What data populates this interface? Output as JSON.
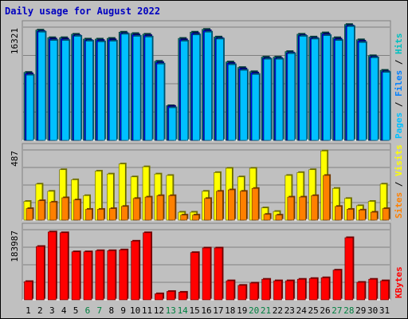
{
  "chart_data": {
    "type": "bar",
    "title": "Daily usage for August 2022",
    "categories": [
      "1",
      "2",
      "3",
      "4",
      "5",
      "6",
      "7",
      "8",
      "9",
      "10",
      "11",
      "12",
      "13",
      "14",
      "15",
      "16",
      "17",
      "18",
      "19",
      "20",
      "21",
      "22",
      "23",
      "24",
      "25",
      "26",
      "27",
      "28",
      "29",
      "30",
      "31"
    ],
    "weekend_days": [
      "6",
      "7",
      "13",
      "14",
      "20",
      "21",
      "27",
      "28"
    ],
    "panels": [
      {
        "id": "hits-panel",
        "max_label": "16321",
        "ymax": 16321,
        "legend": [
          "Pages",
          "Files",
          "Hits"
        ],
        "legend_colors": [
          "#00c0ff",
          "#0080ff",
          "#00c0c0"
        ],
        "series": [
          {
            "name": "Hits",
            "color": "#008080",
            "values": [
              9800,
              15900,
              14800,
              14800,
              15300,
              14600,
              14600,
              14700,
              15600,
              15400,
              15300,
              11400,
              5000,
              14700,
              15600,
              16000,
              14900,
              11300,
              10500,
              9900,
              12000,
              12000,
              12800,
              15300,
              14900,
              15500,
              14800,
              16700,
              14500,
              12200,
              10100
            ]
          },
          {
            "name": "Files",
            "color": "#0000ff",
            "values": [
              9600,
              15700,
              14600,
              14600,
              15100,
              14400,
              14400,
              14500,
              15400,
              15200,
              15100,
              11200,
              4900,
              14500,
              15400,
              15800,
              14700,
              11100,
              10300,
              9700,
              11800,
              11800,
              12600,
              15100,
              14700,
              15300,
              14600,
              16500,
              14300,
              12000,
              9900
            ]
          },
          {
            "name": "Pages",
            "color": "#00c0ff",
            "values": [
              9400,
              15600,
              14400,
              14400,
              15000,
              14300,
              14200,
              14300,
              15300,
              15000,
              14900,
              11000,
              4700,
              14300,
              15200,
              15600,
              14600,
              10900,
              10100,
              9500,
              11700,
              11700,
              12500,
              15000,
              14600,
              15100,
              14400,
              16400,
              14100,
              11900,
              9800
            ]
          }
        ]
      },
      {
        "id": "visits-panel",
        "max_label": "487",
        "ymax": 487,
        "legend": [
          "Sites",
          "Visits"
        ],
        "legend_colors": [
          "#ff8000",
          "#ffff00"
        ],
        "series": [
          {
            "name": "Visits",
            "color": "#ffff00",
            "values": [
              130,
              250,
              200,
              350,
              280,
              170,
              340,
              320,
              390,
              300,
              370,
              320,
              310,
              55,
              55,
              200,
              330,
              360,
              300,
              360,
              85,
              60,
              310,
              330,
              350,
              480,
              220,
              150,
              100,
              130,
              250
            ]
          },
          {
            "name": "Sites",
            "color": "#ff8000",
            "values": [
              80,
              135,
              125,
              155,
              140,
              75,
              75,
              80,
              95,
              150,
              160,
              170,
              170,
              35,
              35,
              150,
              200,
              210,
              200,
              220,
              40,
              35,
              160,
              160,
              170,
              310,
              95,
              75,
              70,
              55,
              80
            ]
          }
        ]
      },
      {
        "id": "kbytes-panel",
        "max_label": "183987",
        "ymax": 183987,
        "legend": [
          "KBytes"
        ],
        "legend_colors": [
          "#ff0000"
        ],
        "series": [
          {
            "name": "KBytes",
            "color": "#ff0000",
            "values": [
              48000,
              140000,
              178000,
              176000,
              126000,
              126000,
              129000,
              129000,
              131000,
              154000,
              176000,
              16000,
              22000,
              20000,
              124000,
              136000,
              136000,
              50000,
              38000,
              44000,
              54000,
              50000,
              50000,
              54000,
              56000,
              58000,
              78000,
              163000,
              46000,
              54000,
              50000
            ]
          }
        ]
      }
    ]
  }
}
